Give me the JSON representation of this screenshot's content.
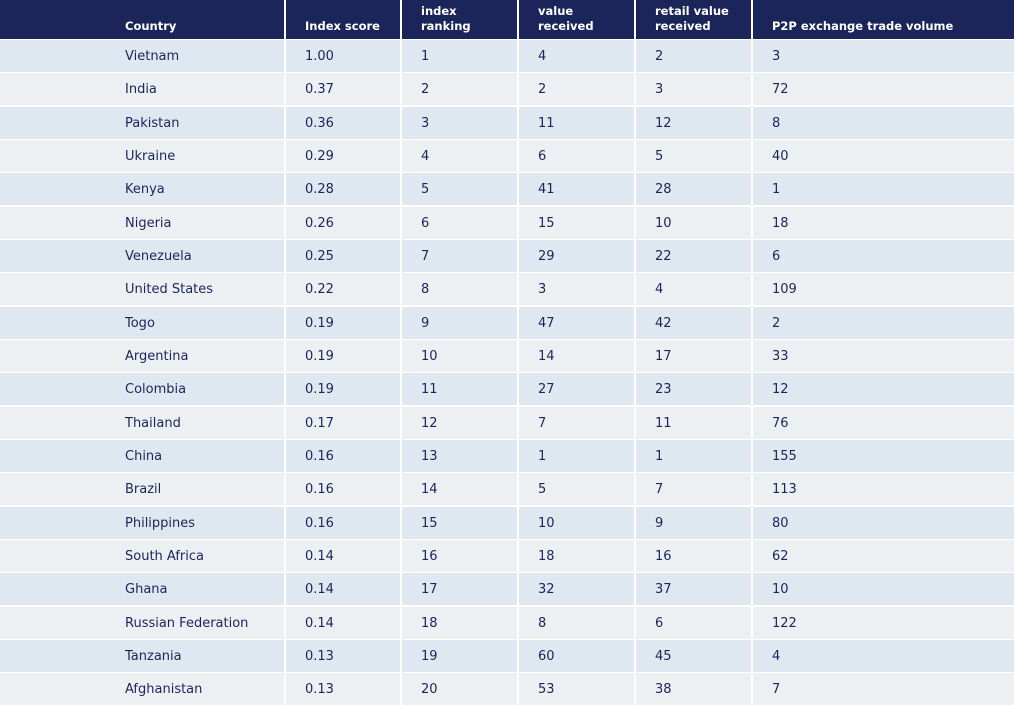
{
  "table": {
    "columns": [
      "Country",
      "Index score",
      "Overall index ranking",
      "On-chain value received",
      "On-chain retail value received",
      "P2P exchange trade volume"
    ],
    "rows": [
      [
        "Vietnam",
        "1.00",
        "1",
        "4",
        "2",
        "3"
      ],
      [
        "India",
        "0.37",
        "2",
        "2",
        "3",
        "72"
      ],
      [
        "Pakistan",
        "0.36",
        "3",
        "11",
        "12",
        "8"
      ],
      [
        "Ukraine",
        "0.29",
        "4",
        "6",
        "5",
        "40"
      ],
      [
        "Kenya",
        "0.28",
        "5",
        "41",
        "28",
        "1"
      ],
      [
        "Nigeria",
        "0.26",
        "6",
        "15",
        "10",
        "18"
      ],
      [
        "Venezuela",
        "0.25",
        "7",
        "29",
        "22",
        "6"
      ],
      [
        "United States",
        "0.22",
        "8",
        "3",
        "4",
        "109"
      ],
      [
        "Togo",
        "0.19",
        "9",
        "47",
        "42",
        "2"
      ],
      [
        "Argentina",
        "0.19",
        "10",
        "14",
        "17",
        "33"
      ],
      [
        "Colombia",
        "0.19",
        "11",
        "27",
        "23",
        "12"
      ],
      [
        "Thailand",
        "0.17",
        "12",
        "7",
        "11",
        "76"
      ],
      [
        "China",
        "0.16",
        "13",
        "1",
        "1",
        "155"
      ],
      [
        "Brazil",
        "0.16",
        "14",
        "5",
        "7",
        "113"
      ],
      [
        "Philippines",
        "0.16",
        "15",
        "10",
        "9",
        "80"
      ],
      [
        "South Africa",
        "0.14",
        "16",
        "18",
        "16",
        "62"
      ],
      [
        "Ghana",
        "0.14",
        "17",
        "32",
        "37",
        "10"
      ],
      [
        "Russian Federation",
        "0.14",
        "18",
        "8",
        "6",
        "122"
      ],
      [
        "Tanzania",
        "0.13",
        "19",
        "60",
        "45",
        "4"
      ],
      [
        "Afghanistan",
        "0.13",
        "20",
        "53",
        "38",
        "7"
      ]
    ]
  },
  "colors": {
    "header_bg": "#1b2559",
    "header_text": "#ffffff",
    "row_odd": "#dfe8f0",
    "row_even": "#ecf0f3",
    "body_text": "#1b2559"
  }
}
